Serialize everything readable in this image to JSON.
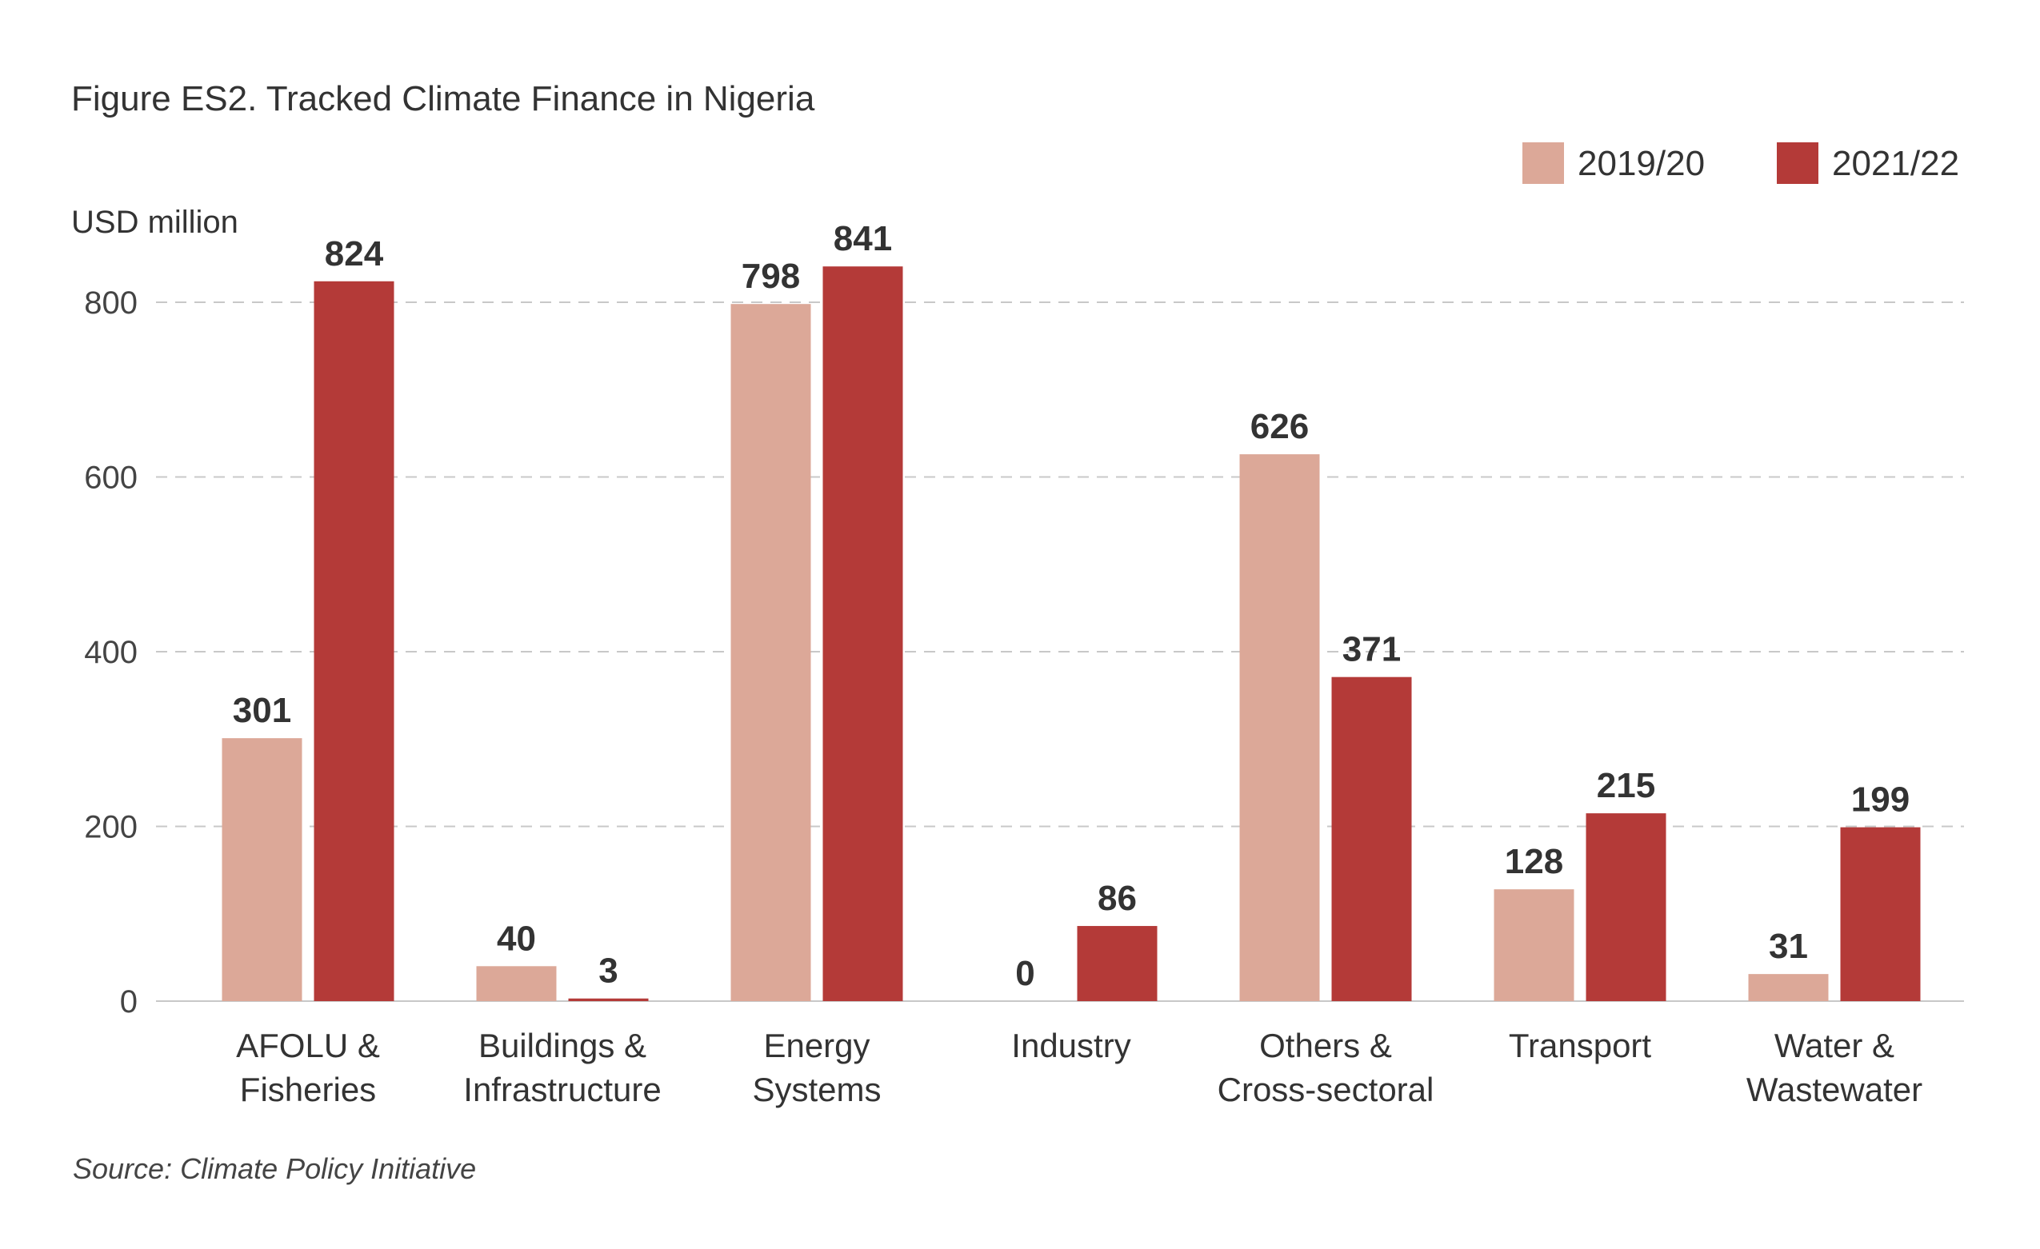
{
  "figure": {
    "title": "Figure ES2. Tracked Climate Finance in Nigeria",
    "source": "Source: Climate Policy Initiative"
  },
  "chart_data": {
    "type": "bar",
    "title": "Figure ES2. Tracked Climate Finance in Nigeria",
    "ylabel": "USD million",
    "xlabel": "",
    "ylim": [
      0,
      870
    ],
    "yticks": [
      0,
      200,
      400,
      600,
      800
    ],
    "grid": true,
    "legend_position": "top-right",
    "categories": [
      [
        "AFOLU &",
        "Fisheries"
      ],
      [
        "Buildings &",
        "Infrastructure"
      ],
      [
        "Energy",
        "Systems"
      ],
      [
        "Industry"
      ],
      [
        "Others &",
        "Cross-sectoral"
      ],
      [
        "Transport"
      ],
      [
        "Water &",
        "Wastewater"
      ]
    ],
    "series": [
      {
        "name": "2019/20",
        "color": "#dca898",
        "values": [
          301,
          40,
          798,
          0,
          626,
          128,
          31
        ]
      },
      {
        "name": "2021/22",
        "color": "#b43a38",
        "values": [
          824,
          3,
          841,
          86,
          371,
          215,
          199
        ]
      }
    ],
    "value_labels": [
      [
        "301",
        "40",
        "798",
        "0",
        "626",
        "128",
        "31"
      ],
      [
        "824",
        "3",
        "841",
        "86",
        "371",
        "215",
        "199"
      ]
    ]
  }
}
